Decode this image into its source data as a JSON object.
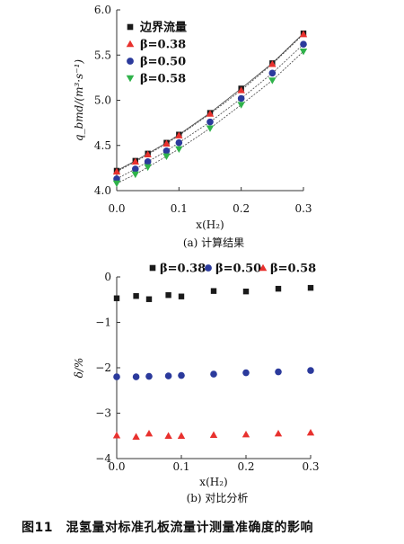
{
  "figure_caption": "图11　混氢量对标准孔板流量计测量准确度的影响",
  "chart_data": [
    {
      "type": "scatter",
      "subcaption": "(a) 计算结果",
      "xlabel": "x(H₂)",
      "ylabel": "q_bmd/(m³·s⁻¹)",
      "xlim": [
        0.0,
        0.3
      ],
      "ylim": [
        4.0,
        6.0
      ],
      "xticks": [
        "0.0",
        "0.1",
        "0.2",
        "0.3"
      ],
      "yticks": [
        "4.0",
        "4.5",
        "5.0",
        "5.5",
        "6.0"
      ],
      "legend_position": "top-left",
      "x": [
        0.0,
        0.03,
        0.05,
        0.08,
        0.1,
        0.15,
        0.2,
        0.25,
        0.3
      ],
      "series": [
        {
          "name": "边界流量",
          "marker": "square",
          "color": "#1a1a1a",
          "values": [
            4.22,
            4.33,
            4.41,
            4.53,
            4.62,
            4.86,
            5.13,
            5.41,
            5.74
          ]
        },
        {
          "name": "β=0.38",
          "marker": "triangle-up",
          "color": "#e8312e",
          "values": [
            4.21,
            4.32,
            4.4,
            4.52,
            4.61,
            4.85,
            5.11,
            5.4,
            5.73
          ]
        },
        {
          "name": "β=0.50",
          "marker": "circle",
          "color": "#2b3a9c",
          "values": [
            4.13,
            4.24,
            4.32,
            4.44,
            4.53,
            4.76,
            5.02,
            5.3,
            5.62
          ]
        },
        {
          "name": "β=0.58",
          "marker": "triangle-down",
          "color": "#2fb24a",
          "values": [
            4.08,
            4.18,
            4.26,
            4.38,
            4.46,
            4.69,
            4.95,
            5.22,
            5.54
          ]
        }
      ]
    },
    {
      "type": "scatter",
      "subcaption": "(b) 对比分析",
      "xlabel": "x(H₂)",
      "ylabel": "δ/%",
      "xlim": [
        0.0,
        0.3
      ],
      "ylim": [
        -4,
        0
      ],
      "xticks": [
        "0.0",
        "0.1",
        "0.2",
        "0.3"
      ],
      "yticks": [
        "0",
        "−1",
        "−2",
        "−3",
        "−4"
      ],
      "legend_position": "top",
      "x": [
        0.0,
        0.03,
        0.05,
        0.08,
        0.1,
        0.15,
        0.2,
        0.25,
        0.3
      ],
      "series": [
        {
          "name": "β=0.38",
          "marker": "square",
          "color": "#1a1a1a",
          "values": [
            -0.47,
            -0.42,
            -0.49,
            -0.4,
            -0.43,
            -0.31,
            -0.32,
            -0.26,
            -0.24
          ]
        },
        {
          "name": "β=0.50",
          "marker": "circle",
          "color": "#2b3a9c",
          "values": [
            -2.2,
            -2.2,
            -2.19,
            -2.18,
            -2.17,
            -2.14,
            -2.11,
            -2.09,
            -2.06
          ]
        },
        {
          "name": "β=0.58",
          "marker": "triangle-up",
          "color": "#e8312e",
          "values": [
            -3.49,
            -3.52,
            -3.45,
            -3.5,
            -3.5,
            -3.48,
            -3.47,
            -3.45,
            -3.43
          ]
        }
      ]
    }
  ]
}
